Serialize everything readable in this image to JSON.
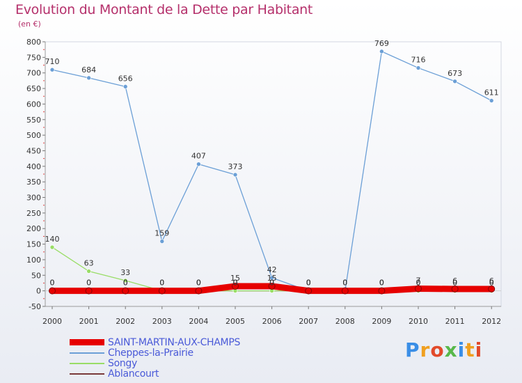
{
  "chart_data": {
    "type": "line",
    "title": "Evolution du Montant de la Dette par Habitant",
    "subtitle": "(en €)",
    "xlabel": "",
    "ylabel": "",
    "x": [
      "2000",
      "2001",
      "2002",
      "2003",
      "2004",
      "2005",
      "2006",
      "2007",
      "2008",
      "2009",
      "2010",
      "2011",
      "2012"
    ],
    "ylim": [
      -50,
      800
    ],
    "yticks": [
      -50,
      0,
      50,
      100,
      150,
      200,
      250,
      300,
      350,
      400,
      450,
      500,
      550,
      600,
      650,
      700,
      750,
      800
    ],
    "grid": false,
    "legend_position": "bottom-left",
    "series": [
      {
        "name": "SAINT-MARTIN-AUX-CHAMPS",
        "color": "#e60000",
        "values": [
          0,
          0,
          0,
          0,
          0,
          15,
          15,
          0,
          0,
          0,
          7,
          6,
          6
        ],
        "labels": [
          "0",
          "0",
          "0",
          "0",
          "0",
          "15",
          "15",
          "0",
          "0",
          "0",
          "7",
          "6",
          "6"
        ]
      },
      {
        "name": "Cheppes-la-Prairie",
        "color": "#6b9fd6",
        "values": [
          710,
          684,
          656,
          159,
          407,
          373,
          42,
          0,
          0,
          769,
          716,
          673,
          611
        ],
        "labels": [
          "710",
          "684",
          "656",
          "159",
          "407",
          "373",
          "42",
          "0",
          "0",
          "769",
          "716",
          "673",
          "611"
        ]
      },
      {
        "name": "Songy",
        "color": "#99dd66",
        "values": [
          140,
          63,
          33,
          0,
          0,
          0,
          0,
          0,
          0,
          0,
          0,
          0,
          0
        ],
        "labels": [
          "140",
          "63",
          "33",
          "0",
          "0",
          "0",
          "0",
          "0",
          "0",
          "0",
          "0",
          "0",
          "0"
        ]
      },
      {
        "name": "Ablancourt",
        "color": "#7a3a3a",
        "values": [
          0,
          0,
          0,
          0,
          0,
          0,
          0,
          0,
          0,
          0,
          0,
          0,
          0
        ],
        "labels": [
          "0",
          "0",
          "0",
          "0",
          "0",
          "0",
          "0",
          "0",
          "0",
          "0",
          "0",
          "0",
          "0"
        ]
      }
    ]
  },
  "logo": {
    "letters": [
      "P",
      "r",
      "o",
      "x",
      "i",
      "t",
      "i"
    ],
    "colors": [
      "#3a8ee6",
      "#f0a020",
      "#e24a2a",
      "#58b84a",
      "#3a8ee6",
      "#f0a020",
      "#e24a2a"
    ]
  }
}
